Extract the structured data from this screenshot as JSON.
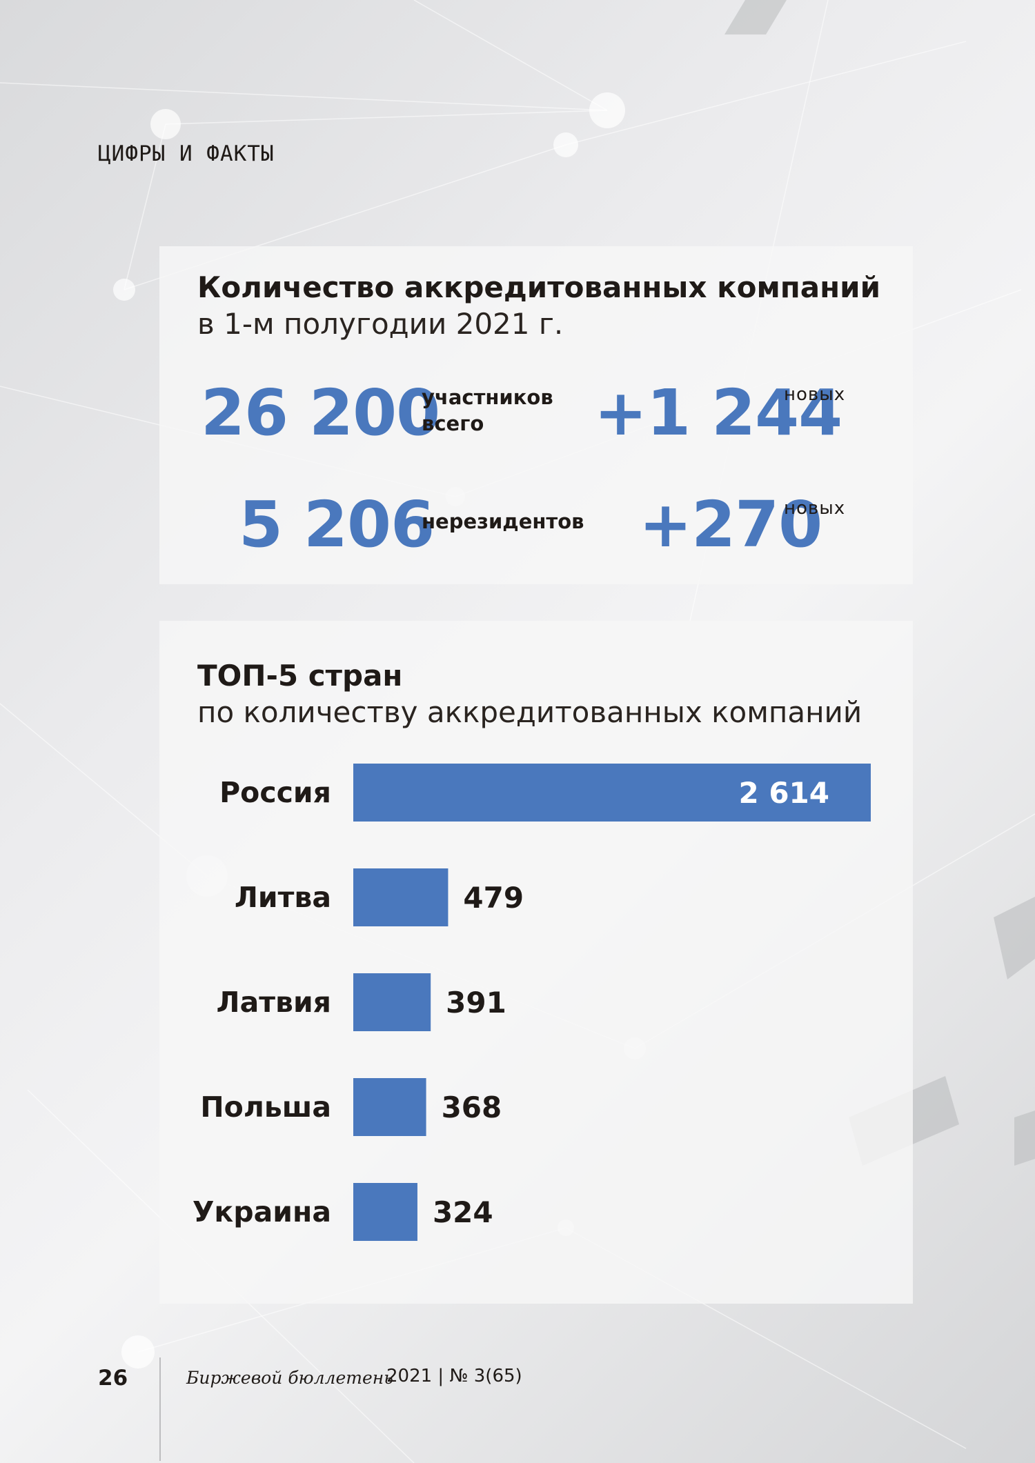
{
  "section": "ЦИФРЫ И ФАКТЫ",
  "panel1": {
    "title": "Количество аккредитованных компаний",
    "subtitle": "в 1-м полугодии 2021 г.",
    "stats": {
      "total_value": "26 200",
      "total_label_1": "участников",
      "total_label_2": "всего",
      "total_new_value": "+1 244",
      "total_new_label": "новых",
      "nonres_value": "5 206",
      "nonres_label": "нерезидентов",
      "nonres_new_value": "+270",
      "nonres_new_label": "новых"
    }
  },
  "panel2": {
    "title": "ТОП-5 стран",
    "subtitle": "по количеству аккредитованных компаний"
  },
  "chart_data": {
    "type": "bar",
    "orientation": "horizontal",
    "categories": [
      "Россия",
      "Литва",
      "Латвия",
      "Польша",
      "Украина"
    ],
    "values": [
      2614,
      479,
      391,
      368,
      324
    ],
    "value_labels": [
      "2 614",
      "479",
      "391",
      "368",
      "324"
    ],
    "bar_color": "#4a78bd",
    "grid": false,
    "legend": "none"
  },
  "footer": {
    "page_number": "26",
    "publication": "Биржевой бюллетень",
    "issue": "2021 | № 3(65)"
  }
}
